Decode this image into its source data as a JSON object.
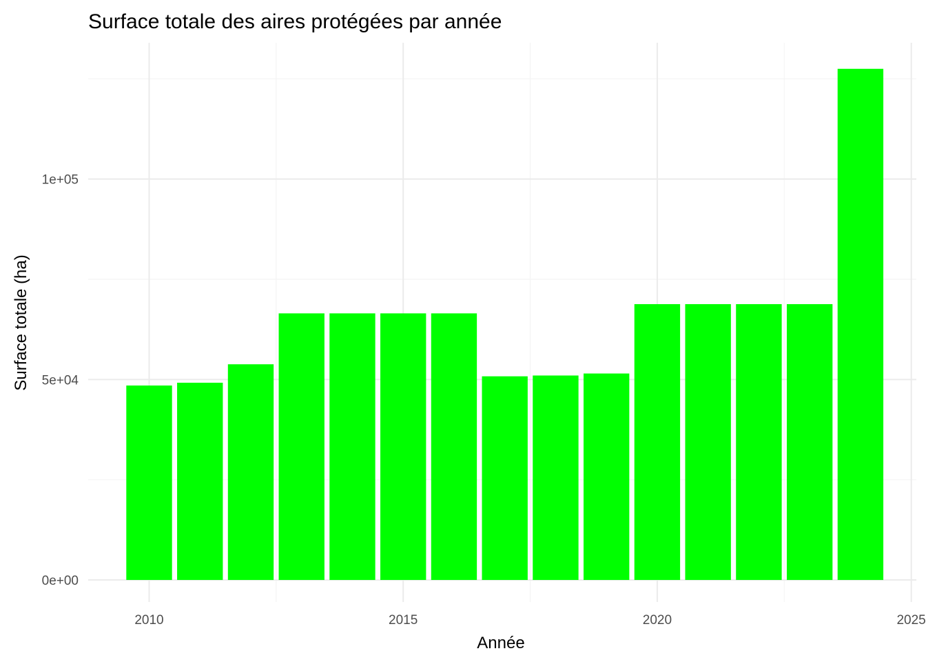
{
  "chart_data": {
    "type": "bar",
    "title": "Surface totale des aires protégées par année",
    "xlabel": "Année",
    "ylabel": "Surface totale (ha)",
    "categories": [
      2010,
      2011,
      2012,
      2013,
      2014,
      2015,
      2016,
      2017,
      2018,
      2019,
      2020,
      2021,
      2022,
      2023,
      2024
    ],
    "values": [
      48500,
      49200,
      53800,
      66500,
      66500,
      66500,
      66500,
      50800,
      51000,
      51500,
      68800,
      68800,
      68800,
      68800,
      127500
    ],
    "xlim": [
      2008.8,
      2025.1
    ],
    "ylim": [
      -5500,
      134000
    ],
    "x_ticks": [
      2010,
      2015,
      2020,
      2025
    ],
    "x_tick_labels": [
      "2010",
      "2015",
      "2020",
      "2025"
    ],
    "y_ticks": [
      0,
      50000,
      100000
    ],
    "y_tick_labels": [
      "0e+00",
      "5e+04",
      "1e+05"
    ],
    "bar_color": "#00ff00",
    "grid": true,
    "legend": "none"
  }
}
